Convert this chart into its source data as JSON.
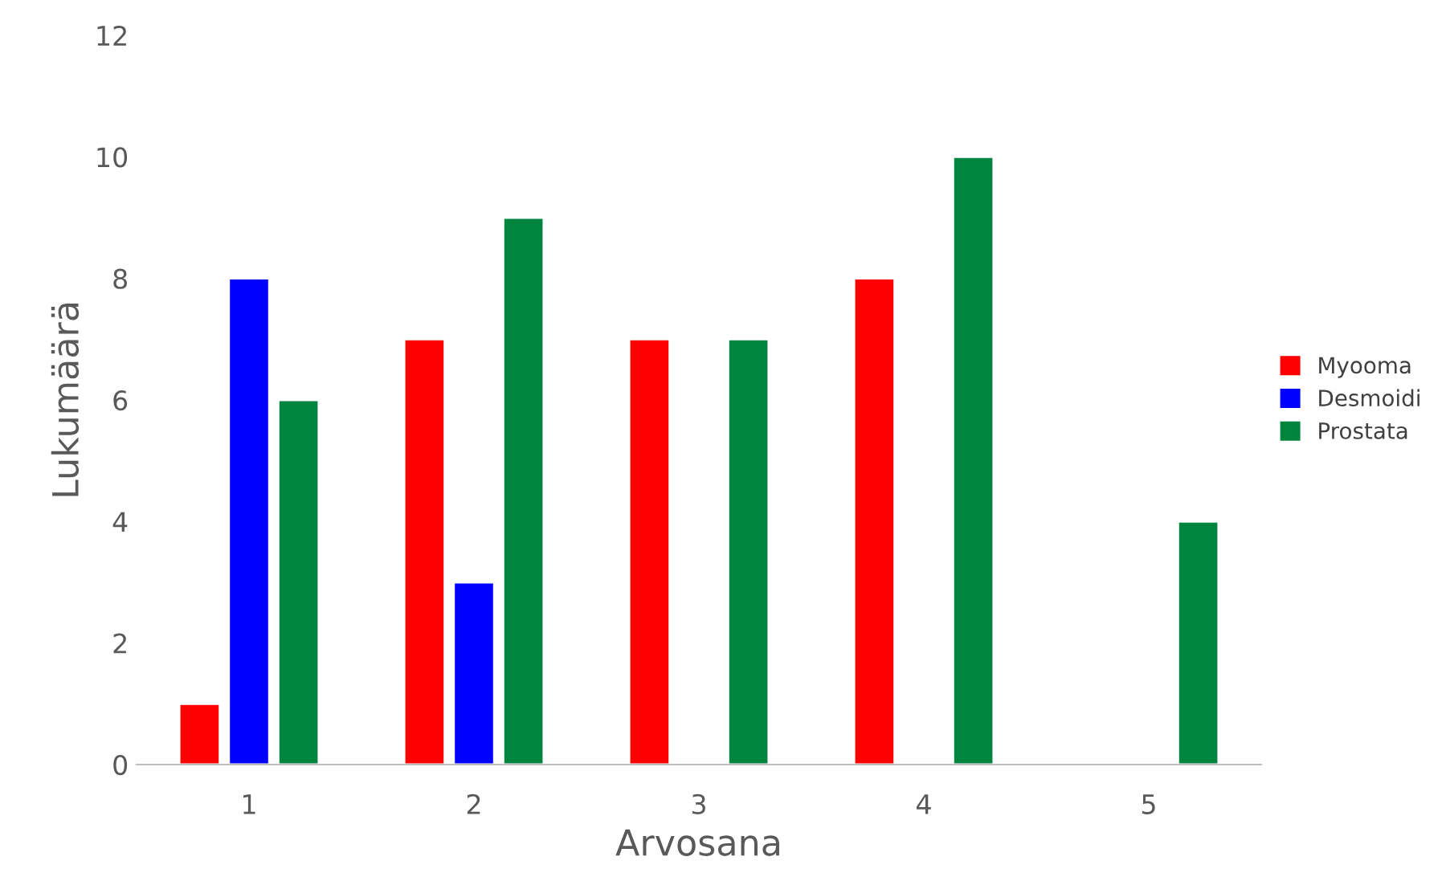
{
  "chart_data": {
    "type": "bar",
    "xlabel": "Arvosana",
    "ylabel": "Lukumäärä",
    "categories": [
      "1",
      "2",
      "3",
      "4",
      "5"
    ],
    "series": [
      {
        "name": "Myooma",
        "color": "#ff0000",
        "values": [
          1,
          7,
          7,
          8,
          null
        ]
      },
      {
        "name": "Desmoidi",
        "color": "#0000ff",
        "values": [
          8,
          3,
          null,
          null,
          null
        ]
      },
      {
        "name": "Prostata",
        "color": "#00853e",
        "values": [
          6,
          9,
          7,
          10,
          4
        ]
      }
    ],
    "ylim": [
      0,
      12
    ],
    "yticks": [
      0,
      2,
      4,
      6,
      8,
      10,
      12
    ],
    "grid": false,
    "legend": "right"
  }
}
